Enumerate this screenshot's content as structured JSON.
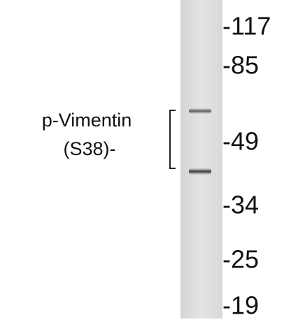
{
  "label": {
    "line1": "p-Vimentin",
    "line2": "(S38)-"
  },
  "markers": [
    "-117",
    "-85",
    "-49",
    "-34",
    "-25",
    "-19"
  ]
}
